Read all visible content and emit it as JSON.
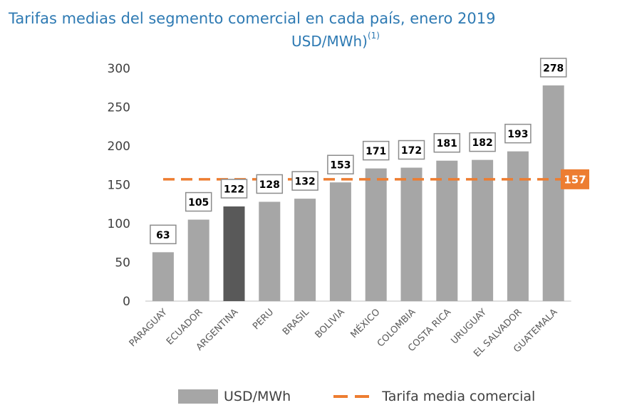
{
  "title": "Tarifas medias del segmento comercial en cada país, enero 2019",
  "subtitle": "USD/MWh)",
  "subtitle_note": "(1)",
  "chart_data": {
    "type": "bar",
    "categories": [
      "PARAGUAY",
      "ECUADOR",
      "ARGENTINA",
      "PERU",
      "BRASIL",
      "BOLIVIA",
      "MÉXICO",
      "COLOMBIA",
      "COSTA RICA",
      "URUGUAY",
      "EL SALVADOR",
      "GUATEMALA"
    ],
    "series": [
      {
        "name": "USD/MWh",
        "values": [
          63,
          105,
          122,
          128,
          132,
          153,
          171,
          172,
          181,
          182,
          193,
          278
        ]
      }
    ],
    "highlight_category": "ARGENTINA",
    "reference_line": {
      "name": "Tarifa media comercial",
      "value": 157,
      "label": "157"
    },
    "yticks": [
      0,
      50,
      100,
      150,
      200,
      250,
      300
    ],
    "ylim": [
      0,
      300
    ],
    "grid": false,
    "legend_position": "bottom",
    "colors": {
      "bar": "#a6a6a6",
      "highlight": "#595959",
      "reference": "#ed7d31",
      "title": "#2e7ab3",
      "text": "#404040"
    }
  },
  "legend": {
    "bars": "USD/MWh",
    "line": "Tarifa media comercial"
  }
}
